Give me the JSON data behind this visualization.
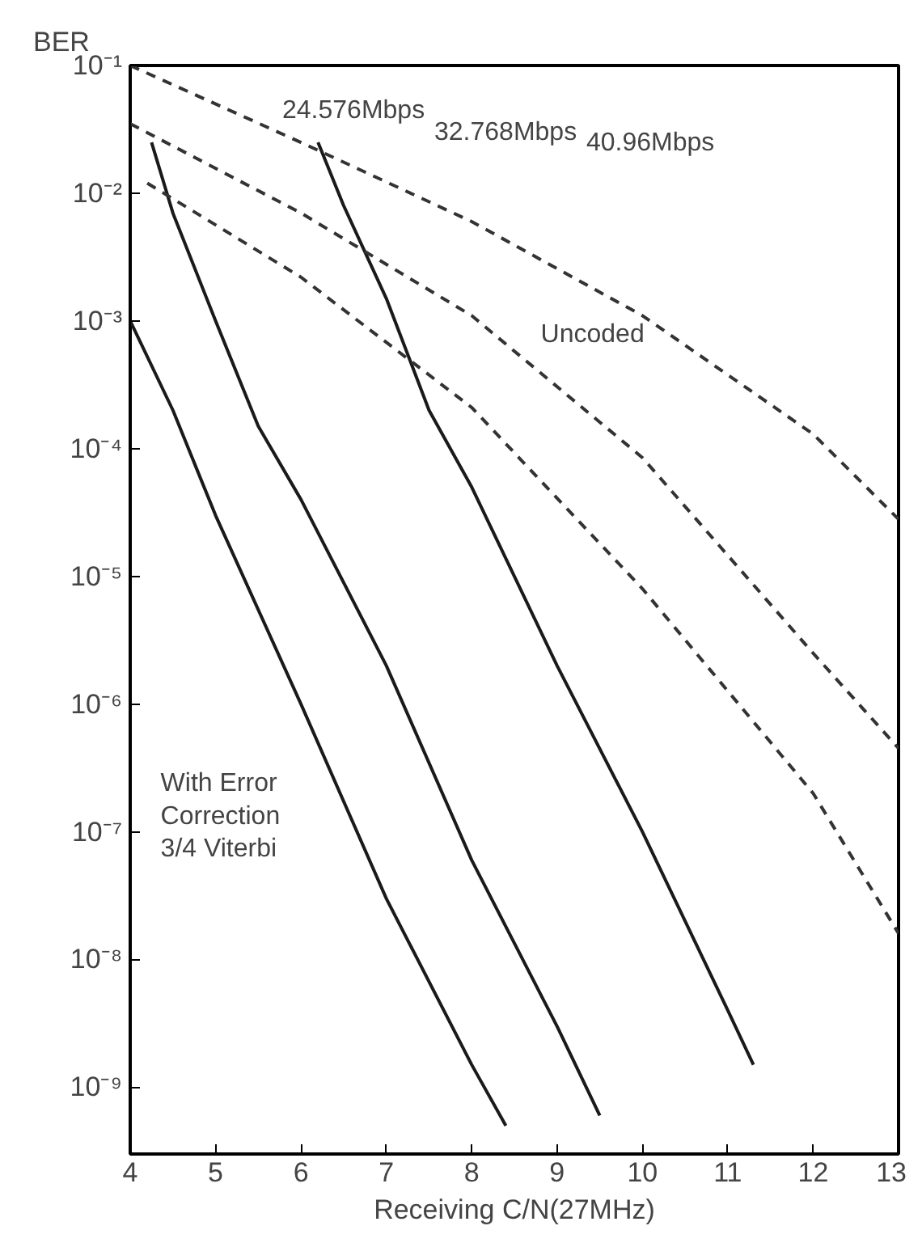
{
  "chart_data": {
    "type": "line",
    "xlabel": "Receiving C/N(27MHz)",
    "ylabel": "BER",
    "log": "y",
    "grid": false,
    "marker": "none",
    "xlim": [
      4,
      13
    ],
    "xticks": [
      4,
      5,
      6,
      7,
      8,
      9,
      10,
      11,
      12,
      13
    ],
    "ylim": [
      3e-10,
      0.1
    ],
    "yticks": [
      {
        "value": 0.1,
        "label": "10⁻¹"
      },
      {
        "value": 0.01,
        "label": "10⁻²"
      },
      {
        "value": 0.001,
        "label": "10⁻³"
      },
      {
        "value": 0.0001,
        "label": "10⁻⁴"
      },
      {
        "value": 1e-05,
        "label": "10⁻⁵"
      },
      {
        "value": 1e-06,
        "label": "10⁻⁶"
      },
      {
        "value": 1e-07,
        "label": "10⁻⁷"
      },
      {
        "value": 1e-08,
        "label": "10⁻⁸"
      },
      {
        "value": 1e-09,
        "label": "10⁻⁹"
      }
    ],
    "series": [
      {
        "color": "#1a1a1a",
        "line_style": "solid",
        "x": [
          4.0,
          4.5,
          5,
          6,
          7,
          8,
          8.4
        ],
        "values": [
          0.001,
          0.0002,
          3e-05,
          1e-06,
          3e-08,
          1.5e-09,
          5e-10
        ]
      },
      {
        "color": "#1a1a1a",
        "line_style": "solid",
        "x": [
          4.25,
          4.5,
          5,
          5.5,
          6,
          7,
          8,
          9,
          9.5
        ],
        "values": [
          0.025,
          0.007,
          0.001,
          0.00015,
          4e-05,
          2e-06,
          6e-08,
          3e-09,
          6e-10
        ]
      },
      {
        "color": "#1a1a1a",
        "line_style": "solid",
        "x": [
          6.2,
          6.5,
          7,
          7.5,
          8,
          9,
          10,
          11,
          11.3
        ],
        "values": [
          0.025,
          0.008,
          0.0015,
          0.0002,
          5e-05,
          2e-06,
          1e-07,
          4e-09,
          1.5e-09
        ]
      },
      {
        "color": "#333333",
        "line_style": "dashed",
        "x": [
          4,
          6,
          8,
          10,
          12,
          13
        ],
        "values": [
          0.1,
          0.025,
          0.006,
          0.0011,
          0.00013,
          2.8e-05
        ]
      },
      {
        "color": "#333333",
        "line_style": "dashed",
        "x": [
          4,
          6,
          8,
          10,
          12,
          13
        ],
        "values": [
          0.035,
          0.007,
          0.0011,
          8.5e-05,
          2.5e-06,
          4.5e-07
        ]
      },
      {
        "color": "#333333",
        "line_style": "dashed",
        "x": [
          4.2,
          6,
          8,
          10,
          12,
          13
        ],
        "values": [
          0.012,
          0.0022,
          0.00021,
          8e-06,
          2e-07,
          1.6e-08
        ]
      }
    ],
    "annotations": [
      "24.576Mbps",
      "32.768Mbps",
      "40.96Mbps",
      "Uncoded",
      "With Error\nCorrection\n3/4 Viterbi"
    ]
  }
}
